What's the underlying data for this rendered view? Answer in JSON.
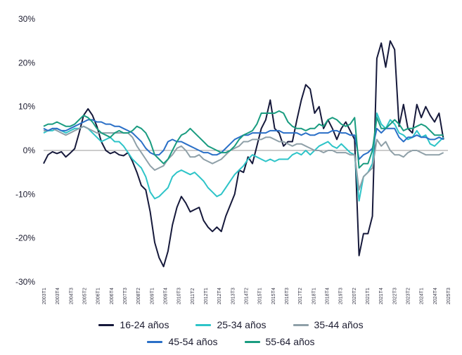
{
  "chart_data": {
    "type": "line",
    "title": "",
    "xlabel": "",
    "ylabel": "",
    "ylim": [
      -30,
      30
    ],
    "ytick_labels": [
      "30%",
      "20%",
      "10%",
      "0%",
      "-10%",
      "-20%",
      "-30%"
    ],
    "yticks": [
      30,
      20,
      10,
      0,
      -10,
      -20,
      -30
    ],
    "x_tick_labels": [
      "2003T1",
      "2003T4",
      "2004T3",
      "2005T2",
      "2006T1",
      "2006T4",
      "2007T3",
      "2008T2",
      "2009T1",
      "2009T4",
      "2010T3",
      "2011T2",
      "2012T1",
      "2012T4",
      "2013T3",
      "2014T2",
      "2015T1",
      "2015T4",
      "2016T3",
      "2017T2",
      "2018T1",
      "2018T4",
      "2019T3",
      "2020T2",
      "2021T1",
      "2021T4",
      "2022T3",
      "2023T2",
      "2024T1",
      "2024T4",
      "2025T3"
    ],
    "x_count": 92,
    "grid": false,
    "legend_position": "bottom",
    "series": [
      {
        "name": "16-24 años",
        "color": "#16193b",
        "values": [
          -3,
          -1,
          -0.3,
          -0.7,
          -0.3,
          -1.5,
          -0.6,
          0.4,
          4,
          8,
          9.5,
          8,
          5.5,
          2,
          0,
          -0.7,
          -0.3,
          -1,
          -1.2,
          -0.5,
          -2.5,
          -5,
          -8,
          -9,
          -14,
          -21,
          -24.5,
          -26.5,
          -23,
          -17,
          -13,
          -10.5,
          -12,
          -14,
          -13.5,
          -13,
          -16,
          -17.5,
          -18.5,
          -17.5,
          -18.5,
          -15,
          -12.5,
          -10,
          -4.5,
          -5,
          -1.5,
          -3,
          1,
          5,
          7,
          11.5,
          5,
          4,
          1,
          2,
          2,
          7,
          11.5,
          15,
          14,
          8.5,
          10,
          5,
          7,
          5,
          2.5,
          5,
          6.5,
          4.5,
          2.5,
          -24,
          -19,
          -19,
          -15,
          21,
          24.5,
          19,
          25,
          23,
          5.5,
          10.5,
          5,
          4,
          10.5,
          7.5,
          10,
          8,
          6.5,
          8.5,
          2.5
        ]
      },
      {
        "name": "25-34 años",
        "color": "#2ec4c8",
        "values": [
          4,
          4.5,
          4.5,
          5,
          4.5,
          4,
          4.5,
          5,
          5,
          5.5,
          5,
          4,
          3,
          2,
          2.5,
          3,
          2,
          2,
          1,
          -0.5,
          -2,
          -3,
          -4,
          -6,
          -9.5,
          -11,
          -10.5,
          -9.5,
          -8.5,
          -6,
          -5,
          -4.5,
          -5,
          -5.5,
          -5,
          -6,
          -7,
          -8.5,
          -9.5,
          -10.5,
          -10,
          -8.5,
          -7,
          -5.5,
          -4.5,
          -3.5,
          -2,
          -1,
          -1.5,
          -2,
          -2.5,
          -2,
          -2.5,
          -2,
          -2,
          -2,
          -1,
          -0.5,
          -1,
          0,
          -1,
          0,
          1,
          1.5,
          2,
          1,
          0.5,
          1.5,
          0.5,
          -0.5,
          -1,
          -11.5,
          -6,
          -5,
          -3,
          8.5,
          6,
          5,
          7,
          6,
          4,
          3.5,
          2.5,
          3,
          4.5,
          3,
          3.5,
          1.5,
          1,
          2,
          3
        ]
      },
      {
        "name": "35-44 años",
        "color": "#8fa0a8",
        "values": [
          4.5,
          4.5,
          5,
          4.5,
          4,
          3.5,
          4,
          4.5,
          5,
          5.5,
          5,
          4.5,
          4,
          4,
          4,
          4,
          4,
          4,
          4,
          4,
          3,
          1,
          -0.5,
          -2,
          -3.5,
          -4.5,
          -4,
          -3.5,
          -2,
          -1,
          0.5,
          1,
          0,
          -1.5,
          -1.5,
          -1,
          -2,
          -2.5,
          -3,
          -2.5,
          -2,
          -1,
          0,
          0.5,
          1,
          2,
          2,
          2.5,
          2.5,
          2.5,
          3,
          3,
          2.5,
          2,
          2,
          1.5,
          1,
          1.5,
          1.5,
          1,
          0.5,
          0,
          0,
          -0.5,
          0,
          0,
          -0.5,
          -0.5,
          -0.5,
          -1,
          -1,
          -9,
          -6,
          -5,
          -4,
          2.5,
          1,
          2,
          0,
          -1,
          -1,
          -1.5,
          -0.5,
          0,
          0,
          -0.5,
          -1,
          -1,
          -1,
          -1,
          -0.5
        ]
      },
      {
        "name": "45-54 años",
        "color": "#2a6fc7",
        "values": [
          5,
          4.5,
          5,
          5,
          4.5,
          4.5,
          5,
          5.5,
          6,
          6.5,
          7,
          7,
          6.5,
          6.5,
          6,
          6,
          5.5,
          5.5,
          5,
          4.5,
          4,
          3,
          2,
          0.5,
          -0.5,
          -1,
          -1,
          0,
          2,
          2.5,
          2,
          2,
          1.5,
          1,
          0.5,
          0,
          -0.5,
          -0.5,
          -1,
          -1,
          -0.5,
          0.5,
          1.5,
          2.5,
          3,
          3.5,
          3.5,
          4,
          4,
          4,
          4,
          4.5,
          4.5,
          4.5,
          4,
          4,
          4,
          4,
          3.5,
          4,
          3.5,
          3.5,
          4,
          4,
          4,
          4.5,
          4.5,
          4,
          4,
          3.5,
          3.5,
          -2,
          -1,
          -0.5,
          0.5,
          5,
          4,
          5,
          5,
          5,
          3,
          2,
          3,
          3,
          3.5,
          3,
          3,
          2.5,
          2.5,
          3,
          2.5
        ]
      },
      {
        "name": "55-64 años",
        "color": "#1a9c80",
        "values": [
          5.5,
          6,
          6,
          6.5,
          6,
          5.5,
          5.5,
          6,
          7,
          8,
          7.5,
          6.5,
          5,
          4,
          3.5,
          3,
          4,
          4.5,
          4,
          4,
          4.5,
          5.5,
          5,
          4,
          2,
          -1,
          -2,
          -3,
          -2,
          0,
          2,
          3.5,
          4,
          5,
          4,
          3,
          2,
          1,
          0.5,
          0,
          -0.5,
          -0.5,
          0,
          1,
          2.5,
          3.5,
          4,
          4.5,
          6,
          8.5,
          8.5,
          8.5,
          8.5,
          9,
          8.5,
          6.5,
          5.5,
          5,
          5,
          4.5,
          5,
          5,
          6,
          5.5,
          7,
          7.5,
          7,
          6,
          5.5,
          6,
          7.5,
          -4,
          -3,
          -3,
          0,
          7.5,
          5,
          5,
          6,
          7,
          6,
          4.5,
          5,
          5,
          5.5,
          6,
          5.5,
          4.5,
          3.5,
          3.5,
          3.5
        ]
      }
    ]
  }
}
